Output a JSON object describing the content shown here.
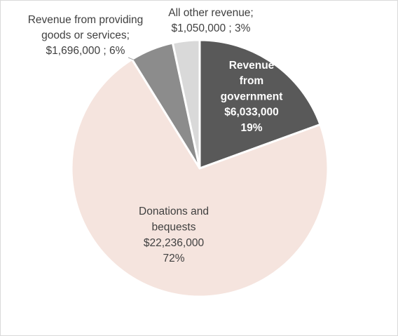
{
  "chart_data": {
    "type": "pie",
    "title": "",
    "slices": [
      {
        "label": "Revenue from government",
        "value": 6033000,
        "percent": 19,
        "color": "#595959",
        "text_color": "#ffffff",
        "label_lines": [
          "Revenue",
          "from",
          "government",
          "$6,033,000",
          "19%"
        ]
      },
      {
        "label": "Donations and bequests",
        "value": 22236000,
        "percent": 72,
        "color": "#f5e4de",
        "text_color": "#404040",
        "label_lines": [
          "Donations and",
          "bequests",
          "$22,236,000",
          "72%"
        ]
      },
      {
        "label": "Revenue from providing goods or services",
        "value": 1696000,
        "percent": 6,
        "color": "#8c8c8c",
        "text_color": "#404040",
        "label_lines": [
          "Revenue from providing",
          "goods or services;",
          "$1,696,000 ; 6%"
        ]
      },
      {
        "label": "All other revenue",
        "value": 1050000,
        "percent": 3,
        "color": "#d9d9d9",
        "text_color": "#404040",
        "label_lines": [
          "All other revenue;",
          "$1,050,000 ; 3%"
        ]
      }
    ],
    "legend": "none",
    "start_angle": "12 o'clock, clockwise"
  }
}
